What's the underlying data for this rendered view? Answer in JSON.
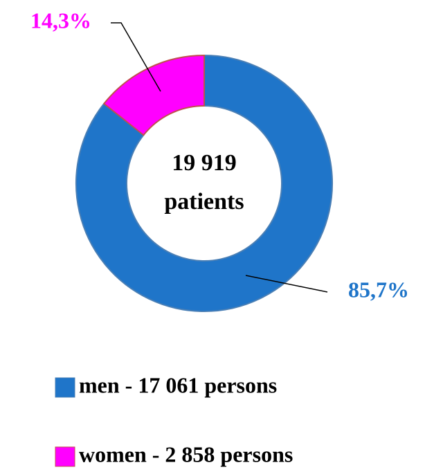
{
  "chart_data": {
    "type": "pie",
    "categories": [
      "men - 17 061 persons",
      "women - 2 858 persons"
    ],
    "values": [
      85.7,
      14.3
    ],
    "value_labels": [
      "85,7%",
      "14,3%"
    ],
    "colors": [
      "#1f75c9",
      "#ff00ff"
    ],
    "center_text": [
      "19 919",
      "patients"
    ]
  }
}
